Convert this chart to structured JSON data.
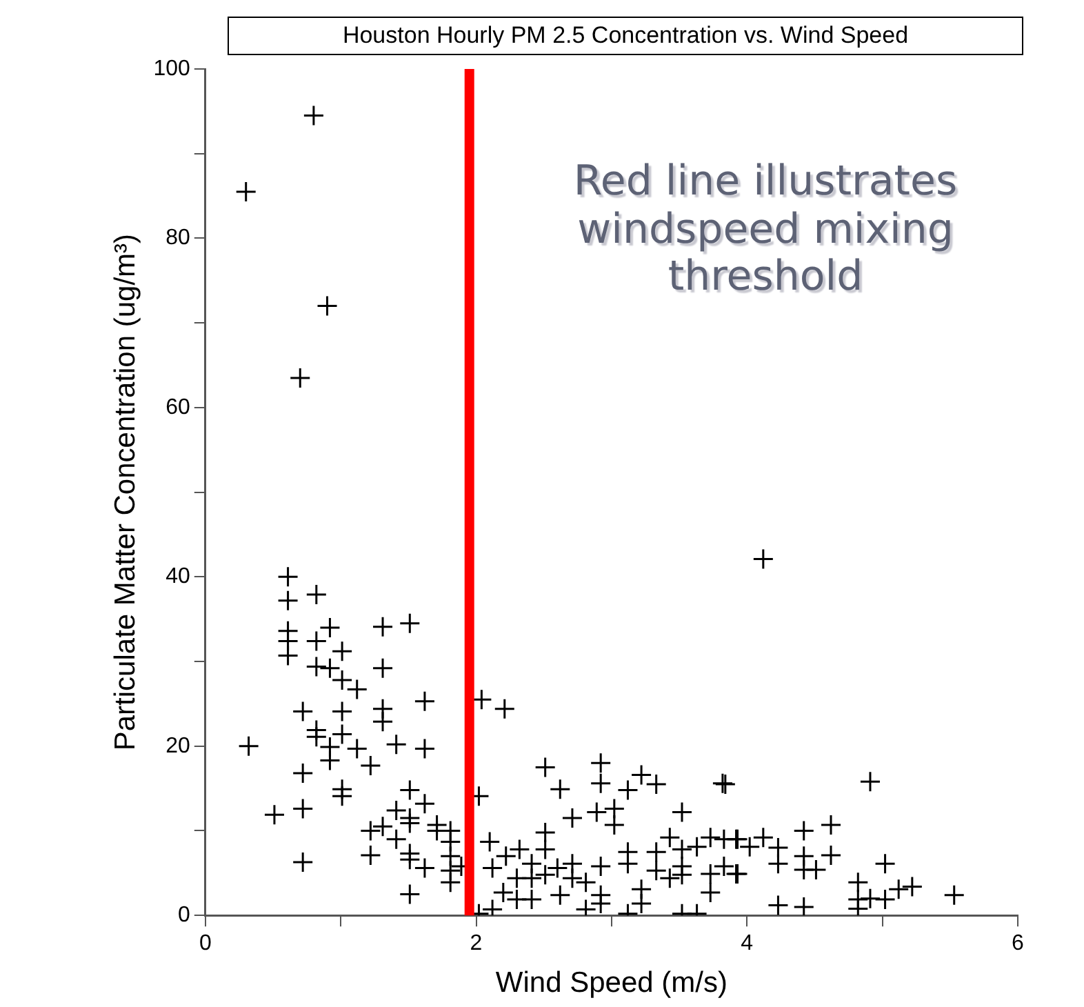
{
  "chart_data": {
    "type": "scatter",
    "title": "Houston Hourly PM 2.5 Concentration vs. Wind Speed",
    "xlabel": "Wind Speed (m/s)",
    "ylabel": "Particulate Matter Concentration (ug/m³)",
    "xlim": [
      0,
      6
    ],
    "xticks": [
      0,
      {
        "value": 1,
        "label": null
      },
      2,
      {
        "value": 3,
        "label": null
      },
      4,
      {
        "value": 5,
        "label": null
      },
      6
    ],
    "ylim": [
      0,
      100
    ],
    "yticks": [
      0,
      {
        "value": 10,
        "label": null
      },
      20,
      {
        "value": 30,
        "label": null
      },
      40,
      {
        "value": 50,
        "label": null
      },
      60,
      {
        "value": 70,
        "label": null
      },
      80,
      {
        "value": 90,
        "label": null
      },
      100
    ],
    "grid": false,
    "legend": false,
    "marker": "cross",
    "ref_lines": [
      {
        "axis": "x",
        "value": 1.95,
        "color": "#ff0000"
      }
    ],
    "annotations": [
      "Red line illustrates windspeed mixing threshold"
    ],
    "series": [
      {
        "color": "#000000",
        "x": [
          0.3,
          0.8,
          0.9,
          0.7,
          0.61,
          0.61,
          0.82,
          0.92,
          0.61,
          0.61,
          0.61,
          0.82,
          1.01,
          1.31,
          1.51,
          0.82,
          0.92,
          1.01,
          1.12,
          1.31,
          1.62,
          0.72,
          1.01,
          1.31,
          1.31,
          0.82,
          0.82,
          1.01,
          0.92,
          0.92,
          1.12,
          1.41,
          1.62,
          0.32,
          1.22,
          0.72,
          1.01,
          1.01,
          0.72,
          0.51,
          1.51,
          1.62,
          1.41,
          1.51,
          1.51,
          1.22,
          1.31,
          1.41,
          1.71,
          1.71,
          1.81,
          1.81,
          0.72,
          1.22,
          1.51,
          1.51,
          1.62,
          1.81,
          1.81,
          1.81,
          1.89,
          1.51,
          2.04,
          2.21,
          2.02,
          2.51,
          2.92,
          2.92,
          2.62,
          3.22,
          3.33,
          3.12,
          3.82,
          2.71,
          2.89,
          3.02,
          3.02,
          3.52,
          2.51,
          2.51,
          2.1,
          2.12,
          2.22,
          2.32,
          2.41,
          2.41,
          2.3,
          2.2,
          2.3,
          2.41,
          2.6,
          2.71,
          2.71,
          2.62,
          2.81,
          2.81,
          2.92,
          2.92,
          2.92,
          2.51,
          3.12,
          3.12,
          3.12,
          3.33,
          3.33,
          3.22,
          3.22,
          3.43,
          3.43,
          3.52,
          3.52,
          3.52,
          3.52,
          3.63,
          3.63,
          3.73,
          3.73,
          3.73,
          3.83,
          3.83,
          3.92,
          3.92,
          2.12,
          2.02,
          4.12,
          4.91,
          3.84,
          3.93,
          4.02,
          4.12,
          4.23,
          4.23,
          4.42,
          4.62,
          4.42,
          4.42,
          4.51,
          4.62,
          3.93,
          4.23,
          4.42,
          4.82,
          4.82,
          4.82,
          4.91,
          5.02,
          5.02,
          5.12,
          5.22,
          5.53
        ],
        "values": [
          85.5,
          94.5,
          72,
          63.5,
          40,
          37.2,
          37.9,
          34,
          33.6,
          32.4,
          30.7,
          32.4,
          31.2,
          34.1,
          34.5,
          29.4,
          29.2,
          27.8,
          26.7,
          29.2,
          25.3,
          24.1,
          24.1,
          24.4,
          22.9,
          21.9,
          21.1,
          21.4,
          19.9,
          18.3,
          19.7,
          20.2,
          19.7,
          20,
          17.7,
          16.8,
          14.9,
          14.1,
          12.6,
          11.9,
          14.8,
          13.2,
          12.4,
          11.5,
          10.9,
          10,
          10.5,
          9,
          10.7,
          10,
          10,
          8.7,
          6.3,
          7.1,
          7.3,
          6.6,
          5.6,
          7,
          5.3,
          3.9,
          5.8,
          2.5,
          25.5,
          24.4,
          14.1,
          17.5,
          18,
          15.6,
          14.9,
          16.6,
          15.5,
          14.8,
          15.6,
          11.5,
          12.2,
          12.6,
          10.7,
          12.2,
          9.8,
          7.8,
          8.7,
          5.6,
          7,
          7.8,
          6.1,
          4.4,
          4.4,
          2.7,
          1.9,
          1.9,
          5.6,
          6.1,
          4.4,
          2.4,
          3.9,
          0.7,
          5.8,
          2.4,
          1.4,
          4.8,
          7.5,
          6.1,
          0.2,
          7.5,
          5.3,
          3.1,
          1.4,
          9.2,
          4.4,
          7.8,
          5.8,
          4.8,
          0.2,
          8.1,
          0.2,
          9.2,
          4.9,
          2.7,
          9,
          5.8,
          9,
          4.9,
          0.7,
          0.2,
          42.1,
          15.8,
          15.5,
          9,
          8.1,
          9.2,
          8,
          6.1,
          10,
          10.7,
          7,
          5.4,
          5.4,
          7.1,
          4.9,
          1.2,
          1,
          3.9,
          1.9,
          0.8,
          2,
          1.9,
          6.1,
          3.1,
          3.4,
          2.4
        ]
      }
    ]
  }
}
